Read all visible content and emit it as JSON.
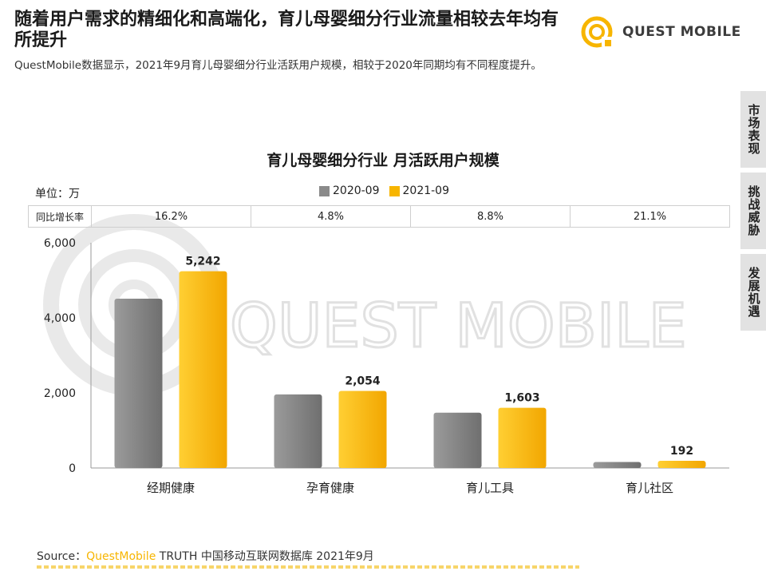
{
  "header": {
    "headline": "随着用户需求的精细化和高端化，育儿母婴细分行业流量相较去年均有所提升",
    "subtitle": "QuestMobile数据显示，2021年9月育儿母婴细分行业活跃用户规模，相较于2020年同期均有不同程度提升。",
    "logo_text": "QUEST MOBILE"
  },
  "side_tabs": [
    {
      "label": "市场表现",
      "active": true
    },
    {
      "label": "挑战威胁",
      "active": false
    },
    {
      "label": "发展机遇",
      "active": false
    }
  ],
  "unit_label": "单位：万",
  "growth_row": {
    "header": "同比增长率",
    "values": [
      "16.2%",
      "4.8%",
      "8.8%",
      "21.1%"
    ]
  },
  "watermark_text": "QUEST MOBILE",
  "footer": {
    "source_prefix": "Source：",
    "source_brand": "QuestMobile",
    "source_rest": " TRUTH 中国移动互联网数据库 2021年9月"
  },
  "colors": {
    "accent": "#f7b500",
    "series_2020": "#8a8a8a",
    "series_2021": "#f7b500"
  },
  "chart_data": {
    "type": "bar",
    "title": "育儿母婴细分行业 月活跃用户规模",
    "categories": [
      "经期健康",
      "孕育健康",
      "育儿工具",
      "育儿社区"
    ],
    "series": [
      {
        "name": "2020-09",
        "values": [
          4510,
          1960,
          1473,
          159
        ]
      },
      {
        "name": "2021-09",
        "values": [
          5242,
          2054,
          1603,
          192
        ]
      }
    ],
    "data_labels": [
      "5,242",
      "2,054",
      "1,603",
      "192"
    ],
    "y_ticks": [
      "0",
      "2,000",
      "4,000",
      "6,000"
    ],
    "y_tick_values": [
      0,
      2000,
      4000,
      6000
    ],
    "ylim": [
      0,
      6000
    ],
    "xlabel": "",
    "ylabel": "",
    "grid": false,
    "legend_position": "top-center"
  }
}
